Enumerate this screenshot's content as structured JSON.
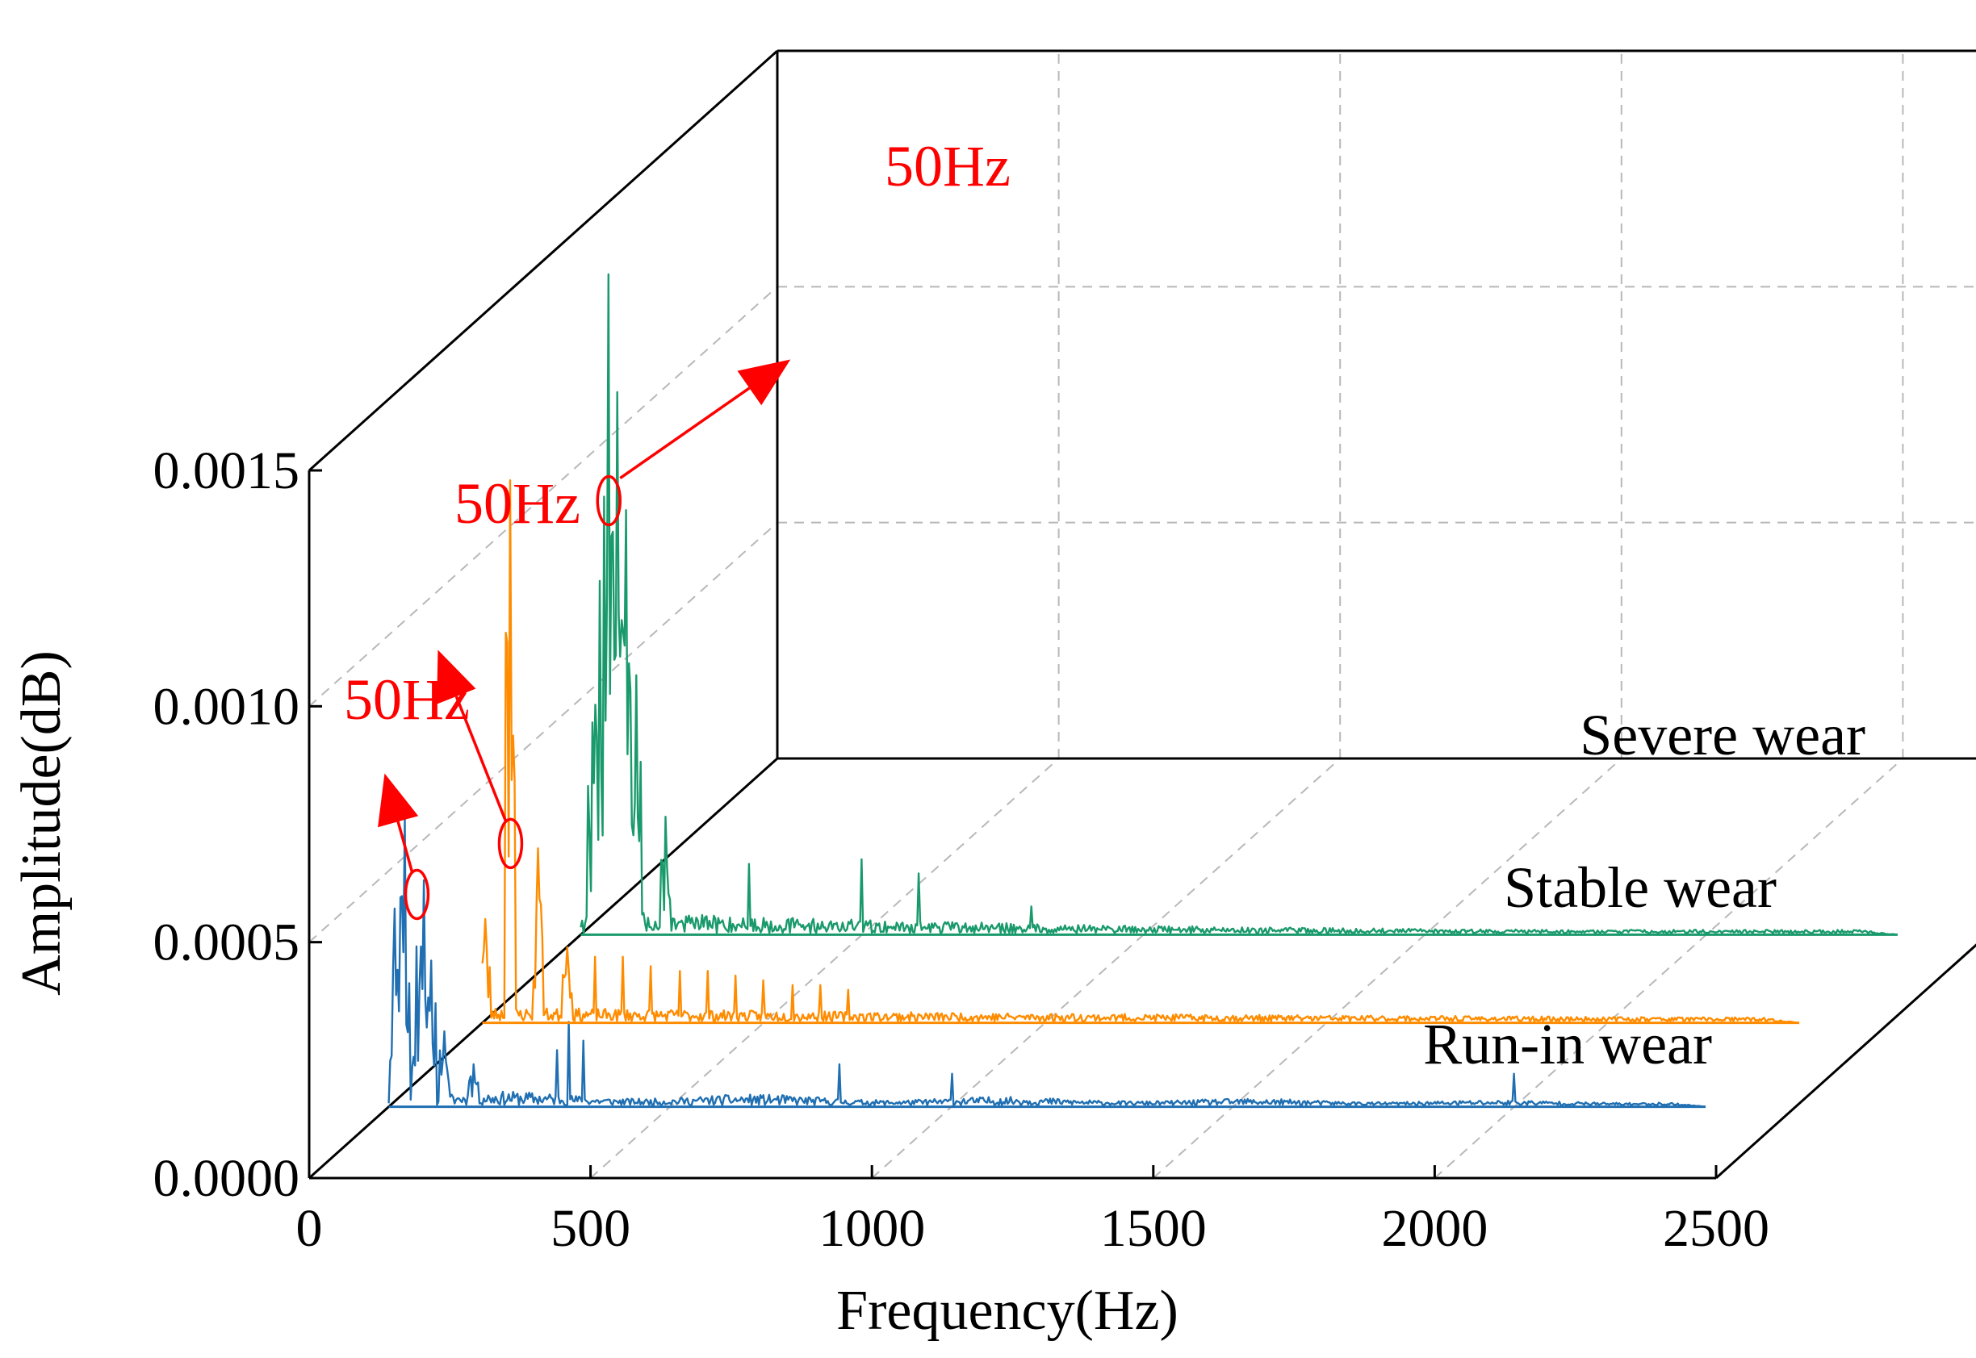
{
  "chart_data": {
    "type": "line",
    "chart_kind": "3d-waterfall-spectrum",
    "xlabel": "Frequency(Hz)",
    "ylabel": "Amplitude(dB)",
    "xlim": [
      0,
      2500
    ],
    "ylim": [
      0.0,
      0.0015
    ],
    "x_ticks": [
      "0",
      "500",
      "1000",
      "1500",
      "2000",
      "2500"
    ],
    "y_ticks": [
      "0.0000",
      "0.0005",
      "0.0010",
      "0.0015"
    ],
    "grid": true,
    "series": [
      {
        "name": "Run-in wear",
        "label": "Run-in wear",
        "color": "#1f6fb2",
        "peaks": [
          {
            "x": 10,
            "y": 0.00042
          },
          {
            "x": 28,
            "y": 0.00061
          },
          {
            "x": 50,
            "y": 0.00034
          },
          {
            "x": 62,
            "y": 0.00048
          },
          {
            "x": 75,
            "y": 0.00031
          },
          {
            "x": 100,
            "y": 0.00016
          },
          {
            "x": 150,
            "y": 9e-05
          },
          {
            "x": 300,
            "y": 0.00012
          },
          {
            "x": 320,
            "y": 0.00018
          },
          {
            "x": 345,
            "y": 0.00014
          },
          {
            "x": 800,
            "y": 9e-05
          },
          {
            "x": 1000,
            "y": 7e-05
          },
          {
            "x": 2000,
            "y": 7e-05
          }
        ],
        "noise_floor": 3e-05,
        "x_max": 2340
      },
      {
        "name": "Stable wear",
        "label": "Stable wear",
        "color": "#ff8c00",
        "peaks": [
          {
            "x": 5,
            "y": 0.00022
          },
          {
            "x": 50,
            "y": 0.00115
          },
          {
            "x": 100,
            "y": 0.00037
          },
          {
            "x": 150,
            "y": 0.00016
          },
          {
            "x": 200,
            "y": 0.00014
          },
          {
            "x": 250,
            "y": 0.00014
          },
          {
            "x": 300,
            "y": 0.00012
          },
          {
            "x": 350,
            "y": 0.00011
          },
          {
            "x": 400,
            "y": 0.00011
          },
          {
            "x": 450,
            "y": 0.0001
          },
          {
            "x": 500,
            "y": 9e-05
          },
          {
            "x": 550,
            "y": 8e-05
          },
          {
            "x": 600,
            "y": 8e-05
          },
          {
            "x": 650,
            "y": 7e-05
          }
        ],
        "noise_floor": 3e-05,
        "x_max": 2340
      },
      {
        "name": "Severe wear",
        "label": "Severe  wear",
        "color": "#1a9a6c",
        "peaks": [
          {
            "x": 20,
            "y": 0.00045
          },
          {
            "x": 35,
            "y": 0.00075
          },
          {
            "x": 50,
            "y": 0.0014
          },
          {
            "x": 65,
            "y": 0.00115
          },
          {
            "x": 80,
            "y": 0.0009
          },
          {
            "x": 100,
            "y": 0.00055
          },
          {
            "x": 150,
            "y": 0.00025
          },
          {
            "x": 300,
            "y": 0.00015
          },
          {
            "x": 500,
            "y": 0.00016
          },
          {
            "x": 600,
            "y": 0.00013
          },
          {
            "x": 800,
            "y": 6e-05
          }
        ],
        "noise_floor": 5e-05,
        "x_max": 2340
      }
    ],
    "annotations": [
      {
        "text": "50Hz",
        "series": "Run-in wear"
      },
      {
        "text": "50Hz",
        "series": "Stable wear"
      },
      {
        "text": "50Hz",
        "series": "Severe wear"
      }
    ]
  },
  "colors": {
    "axis": "#000000",
    "grid": "#b8b8b8",
    "annotation": "#ff0000"
  }
}
